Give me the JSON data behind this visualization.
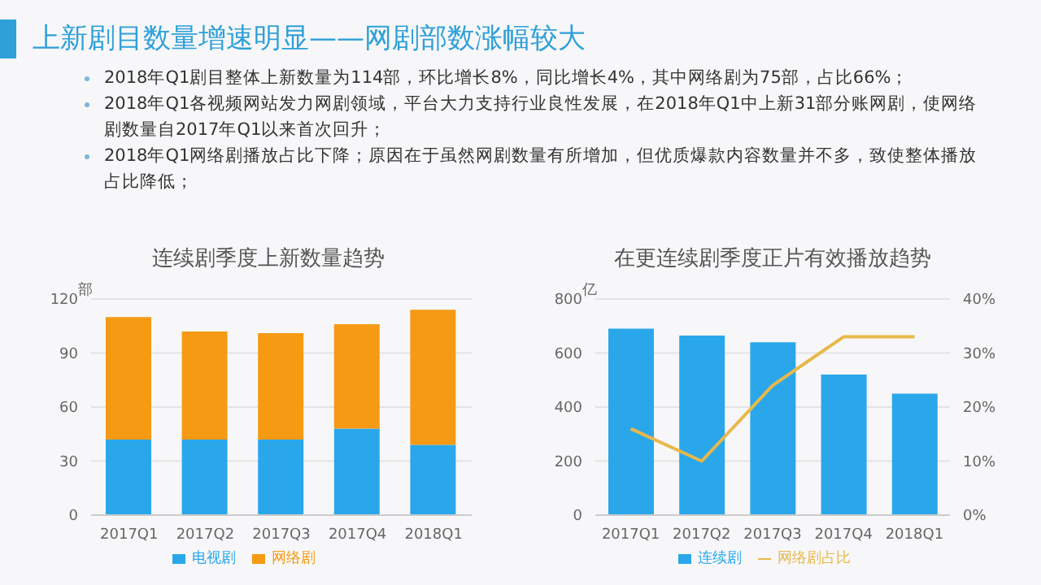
{
  "chart_data": [
    {
      "type": "other",
      "title": "上新剧目数量增速明显——网剧部数涨幅较大",
      "annotations": [
        "2018年Q1剧目整体上新数量为114部，环比增长8%，同比增长4%，其中网络剧为75部，占比66%；",
        "2018年Q1各视频网站发力网剧领域，平台大力支持行业良性发展，在2018年Q1中上新31部分账网剧，使网络剧数量自2017年Q1以来首次回升；",
        "2018年Q1网络剧播放占比下降；原因在于虽然网剧数量有所增加，但优质爆款内容数量并不多，致使整体播放占比降低；"
      ]
    },
    {
      "type": "bar",
      "title": "连续剧季度上新数量趋势",
      "ylabel": "部",
      "categories": [
        "2017Q1",
        "2017Q2",
        "2017Q3",
        "2017Q4",
        "2018Q1"
      ],
      "stacked": true,
      "ylim": [
        0,
        120
      ],
      "yticks": [
        0,
        30,
        60,
        90,
        120
      ],
      "grid": "y",
      "legend": "bottom",
      "series": [
        {
          "name": "电视剧",
          "color": "#2aa7ea",
          "values": [
            42,
            42,
            42,
            48,
            39
          ]
        },
        {
          "name": "网络剧",
          "color": "#f59a12",
          "values": [
            68,
            60,
            59,
            58,
            75
          ]
        }
      ]
    },
    {
      "type": "bar",
      "title": "在更连续剧季度正片有效播放趋势",
      "ylabel": "亿",
      "categories": [
        "2017Q1",
        "2017Q2",
        "2017Q3",
        "2017Q4",
        "2018Q1"
      ],
      "ylim": [
        0,
        800
      ],
      "yticks": [
        0,
        200,
        400,
        600,
        800
      ],
      "y2lim": [
        0,
        40
      ],
      "y2ticks": [
        {
          "value": 0,
          "label": "0%"
        },
        {
          "value": 10,
          "label": "10%"
        },
        {
          "value": 20,
          "label": "20%"
        },
        {
          "value": 30,
          "label": "30%"
        },
        {
          "value": 40,
          "label": "40%"
        }
      ],
      "grid": "y",
      "legend": "bottom",
      "series": [
        {
          "name": "连续剧",
          "color": "#2aa7ea",
          "values": [
            690,
            665,
            640,
            520,
            450
          ]
        },
        {
          "name": "网络剧占比",
          "type": "line",
          "axis": "y2",
          "marker": "none",
          "color": "#e8b84a",
          "values": [
            16,
            10,
            24,
            33,
            33
          ]
        }
      ]
    }
  ]
}
